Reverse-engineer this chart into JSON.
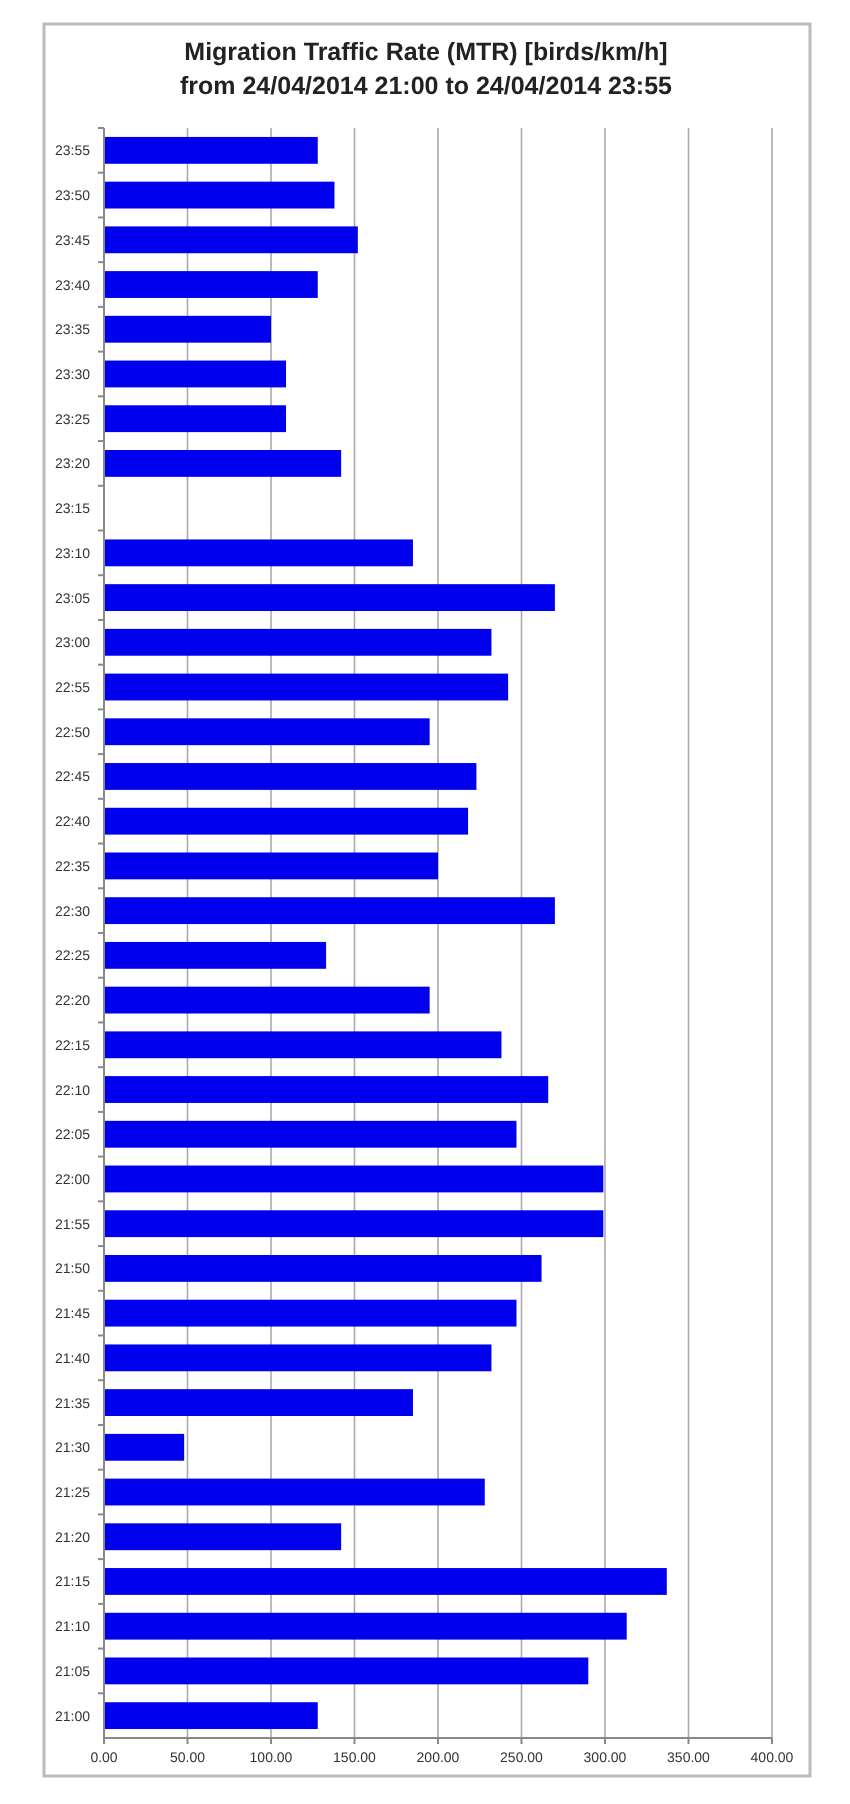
{
  "chart_data": {
    "type": "bar",
    "orientation": "horizontal",
    "title": "Migration Traffic Rate (MTR) [birds/km/h]",
    "subtitle": "from 24/04/2014 21:00 to 24/04/2014 23:55",
    "categories": [
      "23:55",
      "23:50",
      "23:45",
      "23:40",
      "23:35",
      "23:30",
      "23:25",
      "23:20",
      "23:15",
      "23:10",
      "23:05",
      "23:00",
      "22:55",
      "22:50",
      "22:45",
      "22:40",
      "22:35",
      "22:30",
      "22:25",
      "22:20",
      "22:15",
      "22:10",
      "22:05",
      "22:00",
      "21:55",
      "21:50",
      "21:45",
      "21:40",
      "21:35",
      "21:30",
      "21:25",
      "21:20",
      "21:15",
      "21:10",
      "21:05",
      "21:00"
    ],
    "values": [
      128,
      138,
      152,
      128,
      100,
      109,
      109,
      142,
      null,
      185,
      270,
      232,
      242,
      195,
      223,
      218,
      200,
      270,
      133,
      195,
      238,
      266,
      247,
      299,
      299,
      262,
      247,
      232,
      185,
      48,
      228,
      142,
      337,
      313,
      290,
      128
    ],
    "color": "#0000ee",
    "xlim": [
      0,
      400
    ],
    "xticks": [
      {
        "value": 0,
        "label": "0.00"
      },
      {
        "value": 50,
        "label": "50.00"
      },
      {
        "value": 100,
        "label": "100.00"
      },
      {
        "value": 150,
        "label": "150.00"
      },
      {
        "value": 200,
        "label": "200.00"
      },
      {
        "value": 250,
        "label": "250.00"
      },
      {
        "value": 300,
        "label": "300.00"
      },
      {
        "value": 350,
        "label": "350.00"
      },
      {
        "value": 400,
        "label": "400.00"
      }
    ],
    "grid": "x"
  }
}
